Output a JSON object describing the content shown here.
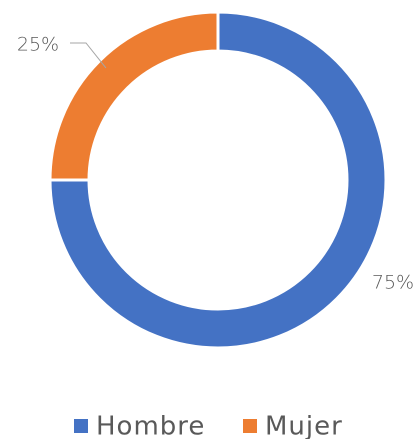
{
  "chart_data": {
    "type": "pie",
    "donut": true,
    "categories": [
      "Hombre",
      "Mujer"
    ],
    "values": [
      75,
      25
    ],
    "value_labels": [
      "75%",
      "25%"
    ],
    "colors": [
      "#4472c4",
      "#ed7d31"
    ],
    "legend": "bottom"
  }
}
